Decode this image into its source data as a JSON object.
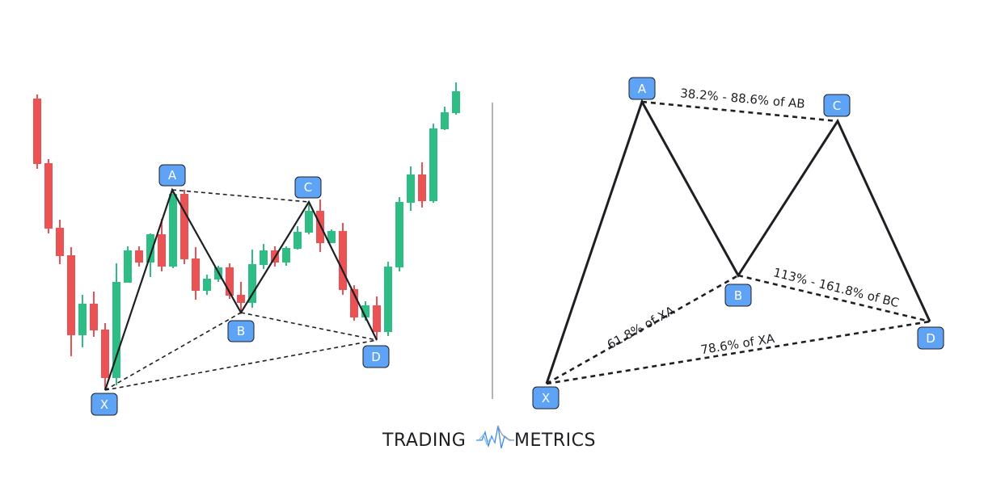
{
  "colors": {
    "bullish": "#2ebd85",
    "bearish": "#eb5254",
    "point_box": "#5ea3f5",
    "line": "#1d1f24",
    "divider": "#9a9a9a"
  },
  "chart_data": {
    "type": "candlestick",
    "title": "",
    "candles": [
      {
        "o": 478,
        "h": 483,
        "l": 391,
        "c": 397
      },
      {
        "o": 398,
        "h": 403,
        "l": 311,
        "c": 317
      },
      {
        "o": 318,
        "h": 328,
        "l": 273,
        "c": 283
      },
      {
        "o": 284,
        "h": 294,
        "l": 159,
        "c": 185
      },
      {
        "o": 185,
        "h": 235,
        "l": 170,
        "c": 224
      },
      {
        "o": 224,
        "h": 239,
        "l": 183,
        "c": 191
      },
      {
        "o": 192,
        "h": 200,
        "l": 117,
        "c": 132
      },
      {
        "o": 132,
        "h": 274,
        "l": 123,
        "c": 251
      },
      {
        "o": 250,
        "h": 295,
        "l": 250,
        "c": 290
      },
      {
        "o": 290,
        "h": 295,
        "l": 270,
        "c": 275
      },
      {
        "o": 275,
        "h": 311,
        "l": 257,
        "c": 310
      },
      {
        "o": 310,
        "h": 329,
        "l": 264,
        "c": 270
      },
      {
        "o": 270,
        "h": 365,
        "l": 268,
        "c": 360
      },
      {
        "o": 360,
        "h": 365,
        "l": 273,
        "c": 279
      },
      {
        "o": 280,
        "h": 294,
        "l": 229,
        "c": 240
      },
      {
        "o": 240,
        "h": 260,
        "l": 235,
        "c": 255
      },
      {
        "o": 254,
        "h": 271,
        "l": 251,
        "c": 269
      },
      {
        "o": 269,
        "h": 274,
        "l": 230,
        "c": 234
      },
      {
        "o": 235,
        "h": 251,
        "l": 215,
        "c": 225
      },
      {
        "o": 225,
        "h": 291,
        "l": 219,
        "c": 273
      },
      {
        "o": 272,
        "h": 298,
        "l": 267,
        "c": 290
      },
      {
        "o": 290,
        "h": 295,
        "l": 270,
        "c": 275
      },
      {
        "o": 275,
        "h": 295,
        "l": 271,
        "c": 293
      },
      {
        "o": 292,
        "h": 320,
        "l": 291,
        "c": 313
      },
      {
        "o": 312,
        "h": 347,
        "l": 310,
        "c": 339
      },
      {
        "o": 339,
        "h": 353,
        "l": 288,
        "c": 299
      },
      {
        "o": 299,
        "h": 316,
        "l": 299,
        "c": 314
      },
      {
        "o": 314,
        "h": 324,
        "l": 235,
        "c": 241
      },
      {
        "o": 242,
        "h": 247,
        "l": 203,
        "c": 207
      },
      {
        "o": 207,
        "h": 227,
        "l": 203,
        "c": 222
      },
      {
        "o": 222,
        "h": 233,
        "l": 180,
        "c": 189
      },
      {
        "o": 189,
        "h": 276,
        "l": 184,
        "c": 270
      },
      {
        "o": 269,
        "h": 356,
        "l": 264,
        "c": 350
      },
      {
        "o": 349,
        "h": 394,
        "l": 339,
        "c": 384
      },
      {
        "o": 384,
        "h": 399,
        "l": 343,
        "c": 351
      },
      {
        "o": 351,
        "h": 447,
        "l": 349,
        "c": 441
      },
      {
        "o": 440,
        "h": 468,
        "l": 439,
        "c": 461
      },
      {
        "o": 460,
        "h": 498,
        "l": 458,
        "c": 487
      }
    ],
    "pattern_points": [
      "X",
      "A",
      "B",
      "C",
      "D"
    ]
  },
  "left_pattern": {
    "labels": {
      "X": "X",
      "A": "A",
      "B": "B",
      "C": "C",
      "D": "D"
    }
  },
  "right_pattern": {
    "labels": {
      "X": "X",
      "A": "A",
      "B": "B",
      "C": "C",
      "D": "D"
    },
    "ratios": {
      "ac": "38.2% - 88.6% of AB",
      "xb": "61.8% of XA",
      "bd": "113% - 161.8% of BC",
      "xd": "78.6% of XA"
    }
  },
  "brand": {
    "left": "TRADING",
    "right": "METRICS"
  }
}
